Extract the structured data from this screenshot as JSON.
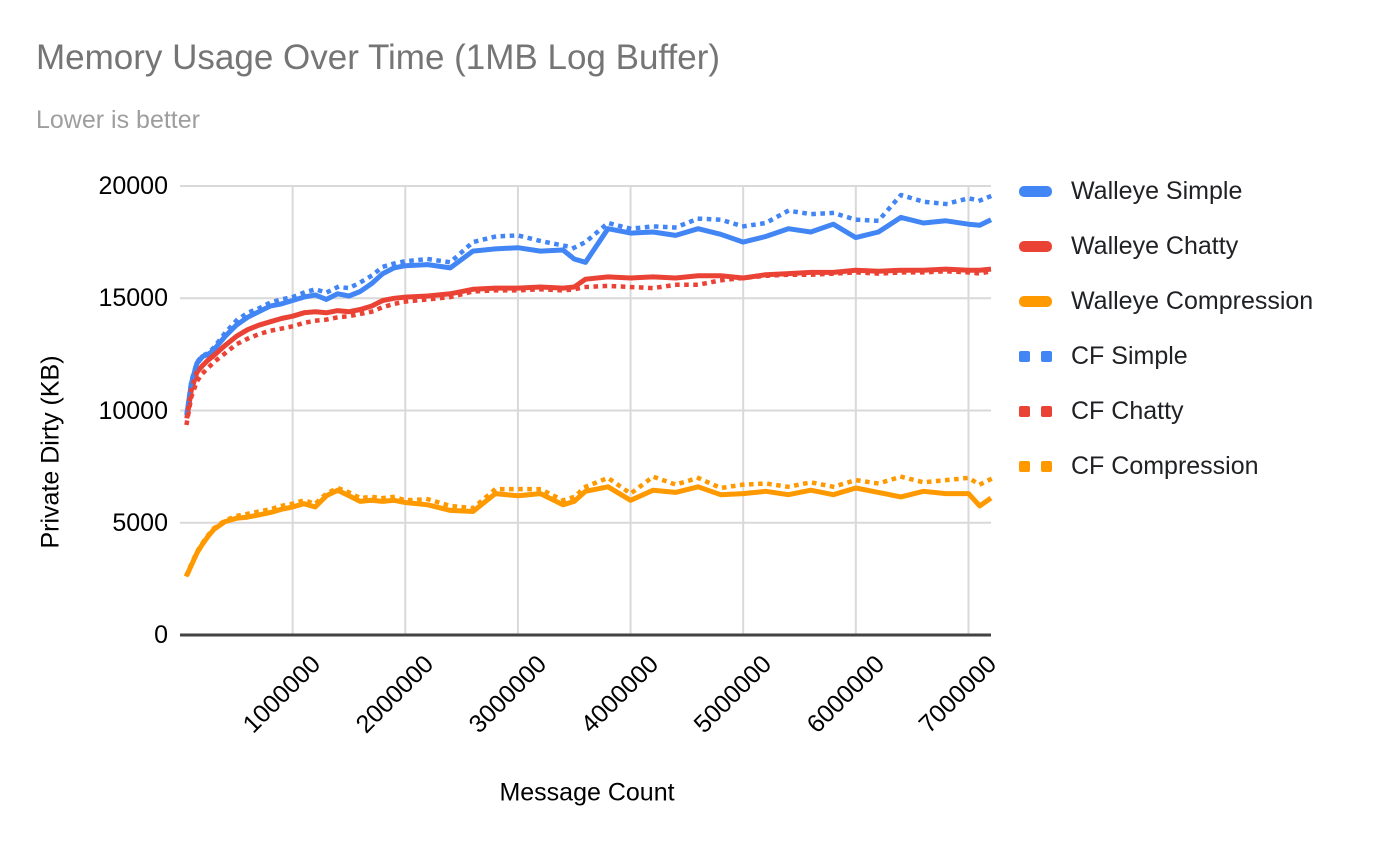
{
  "title": "Memory Usage Over Time (1MB Log Buffer)",
  "subtitle": "Lower is better",
  "chart_data": {
    "type": "line",
    "title": "Memory Usage Over Time (1MB Log Buffer)",
    "subtitle": "Lower is better",
    "xlabel": "Message Count",
    "ylabel": "Private Dirty (KB)",
    "xlim": [
      0,
      7200000
    ],
    "ylim": [
      0,
      20000
    ],
    "x_ticks": [
      1000000,
      2000000,
      3000000,
      4000000,
      5000000,
      6000000,
      7000000
    ],
    "y_ticks": [
      0,
      5000,
      10000,
      15000,
      20000
    ],
    "grid": true,
    "legend_position": "right",
    "x": [
      60000,
      100000,
      150000,
      200000,
      250000,
      300000,
      400000,
      500000,
      600000,
      700000,
      800000,
      900000,
      1000000,
      1100000,
      1200000,
      1300000,
      1400000,
      1500000,
      1600000,
      1700000,
      1800000,
      1900000,
      2000000,
      2200000,
      2400000,
      2600000,
      2800000,
      3000000,
      3200000,
      3400000,
      3500000,
      3600000,
      3800000,
      4000000,
      4200000,
      4400000,
      4600000,
      4800000,
      5000000,
      5200000,
      5400000,
      5600000,
      5800000,
      6000000,
      6200000,
      6400000,
      6600000,
      6800000,
      7000000,
      7100000,
      7200000
    ],
    "series": [
      {
        "name": "Walleye Simple",
        "color": "#4285F4",
        "line_style": "solid",
        "values": [
          9800,
          11200,
          12100,
          12400,
          12500,
          12700,
          13300,
          13800,
          14150,
          14400,
          14650,
          14750,
          14900,
          15050,
          15150,
          14950,
          15200,
          15100,
          15300,
          15650,
          16100,
          16350,
          16450,
          16500,
          16350,
          17100,
          17200,
          17250,
          17100,
          17150,
          16750,
          16600,
          18100,
          17900,
          17950,
          17800,
          18100,
          17850,
          17500,
          17750,
          18100,
          17950,
          18300,
          17700,
          17950,
          18600,
          18350,
          18450,
          18300,
          18250,
          18500
        ]
      },
      {
        "name": "Walleye Chatty",
        "color": "#EA4335",
        "line_style": "solid",
        "values": [
          9650,
          10900,
          11700,
          12000,
          12250,
          12450,
          12900,
          13300,
          13600,
          13800,
          13950,
          14100,
          14200,
          14350,
          14400,
          14350,
          14450,
          14400,
          14500,
          14650,
          14900,
          15000,
          15050,
          15100,
          15200,
          15400,
          15450,
          15450,
          15500,
          15450,
          15500,
          15850,
          15950,
          15900,
          15950,
          15900,
          16000,
          16000,
          15900,
          16050,
          16100,
          16150,
          16150,
          16250,
          16200,
          16250,
          16250,
          16300,
          16250,
          16250,
          16300
        ]
      },
      {
        "name": "Walleye Compression",
        "color": "#FF9900",
        "line_style": "solid",
        "values": [
          2650,
          3100,
          3650,
          4050,
          4400,
          4700,
          5050,
          5200,
          5250,
          5350,
          5450,
          5600,
          5700,
          5850,
          5700,
          6200,
          6450,
          6200,
          5950,
          6000,
          5950,
          6000,
          5900,
          5800,
          5550,
          5500,
          6300,
          6200,
          6300,
          5800,
          5950,
          6400,
          6600,
          6000,
          6450,
          6350,
          6600,
          6250,
          6300,
          6400,
          6250,
          6450,
          6250,
          6550,
          6350,
          6150,
          6400,
          6300,
          6300,
          5750,
          6100
        ]
      },
      {
        "name": "CF Simple",
        "color": "#4285F4",
        "line_style": "dotted",
        "values": [
          9900,
          11300,
          12150,
          12450,
          12550,
          12800,
          13450,
          14000,
          14350,
          14550,
          14800,
          14950,
          15050,
          15250,
          15400,
          15250,
          15500,
          15450,
          15700,
          16000,
          16400,
          16550,
          16650,
          16750,
          16600,
          17500,
          17750,
          17800,
          17550,
          17350,
          17250,
          17500,
          18350,
          18100,
          18200,
          18150,
          18550,
          18500,
          18200,
          18350,
          18900,
          18750,
          18800,
          18500,
          18450,
          19600,
          19300,
          19200,
          19450,
          19350,
          19550
        ]
      },
      {
        "name": "CF Chatty",
        "color": "#EA4335",
        "line_style": "dotted",
        "values": [
          9450,
          10600,
          11300,
          11650,
          11900,
          12150,
          12550,
          12950,
          13200,
          13400,
          13550,
          13650,
          13750,
          13900,
          14000,
          14050,
          14150,
          14200,
          14300,
          14400,
          14600,
          14750,
          14850,
          14950,
          15050,
          15300,
          15350,
          15350,
          15400,
          15350,
          15400,
          15500,
          15550,
          15500,
          15450,
          15600,
          15600,
          15800,
          15900,
          16000,
          16050,
          16050,
          16100,
          16150,
          16100,
          16150,
          16150,
          16200,
          16150,
          16100,
          16200
        ]
      },
      {
        "name": "CF Compression",
        "color": "#FF9900",
        "line_style": "dotted",
        "values": [
          2700,
          3150,
          3700,
          4100,
          4450,
          4750,
          5100,
          5300,
          5400,
          5500,
          5600,
          5750,
          5850,
          6000,
          5850,
          6300,
          6550,
          6350,
          6100,
          6150,
          6100,
          6150,
          6000,
          6050,
          5750,
          5650,
          6500,
          6500,
          6500,
          6000,
          6150,
          6600,
          7000,
          6300,
          7050,
          6700,
          7000,
          6550,
          6700,
          6750,
          6600,
          6800,
          6600,
          6900,
          6750,
          7050,
          6800,
          6900,
          7000,
          6700,
          6950
        ]
      }
    ]
  },
  "colors": {
    "background": "#ffffff",
    "title_text": "#757575",
    "subtitle_text": "#9e9e9e",
    "grid_line": "#d9d9d9",
    "axis_line": "#424242",
    "tick_text": "#000000",
    "legend_text": "#202124",
    "series_blue": "#4285F4",
    "series_red": "#EA4335",
    "series_orange": "#FF9900"
  }
}
